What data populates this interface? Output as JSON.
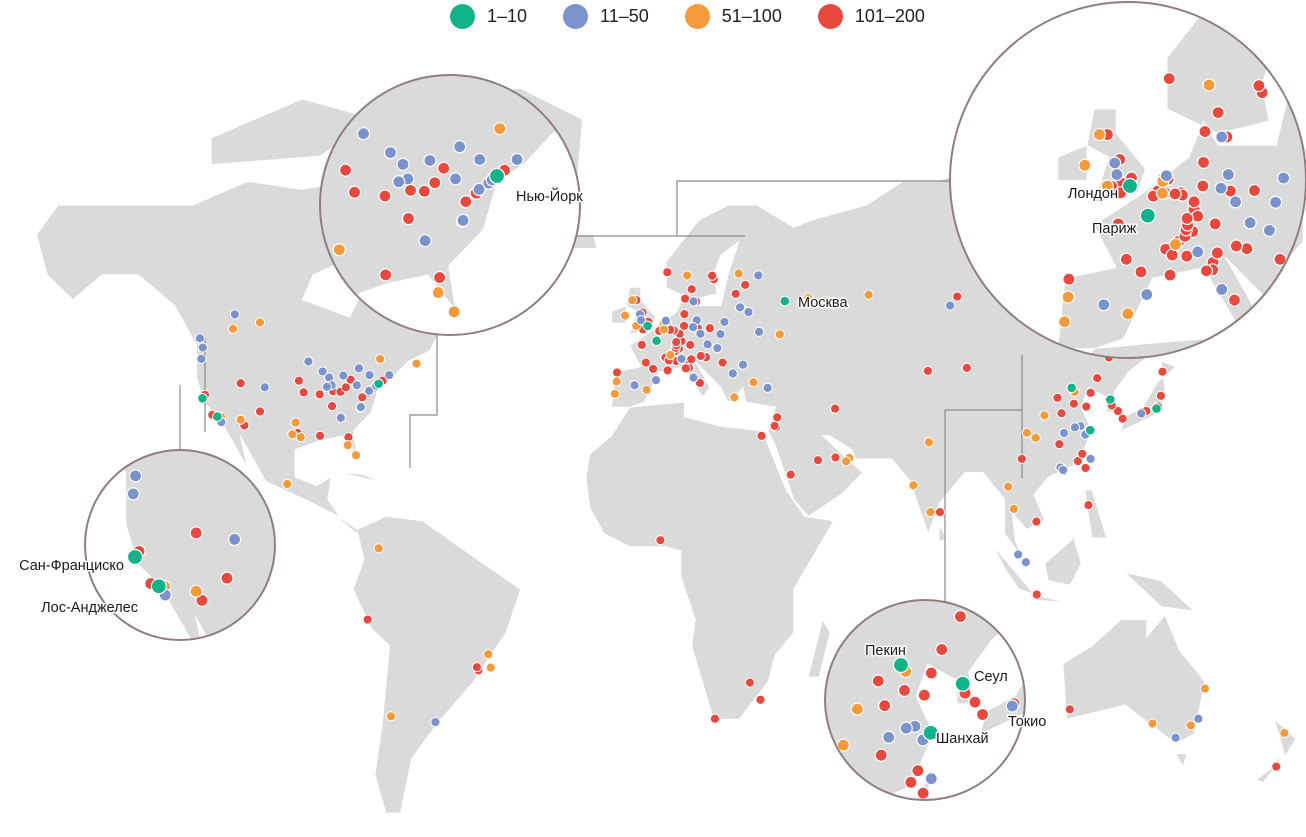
{
  "legend": [
    {
      "label": "1–10",
      "color": "#12b38a"
    },
    {
      "label": "11–50",
      "color": "#7b93cc"
    },
    {
      "label": "51–100",
      "color": "#f59a3a"
    },
    {
      "label": "101–200",
      "color": "#e8493f"
    }
  ],
  "colors": {
    "land": "#dadada",
    "ocean": "#ffffff",
    "inset_border": "#8f7f7c",
    "connector": "#8a8a8a"
  },
  "labels": {
    "moscow": "Москва",
    "new_york": "Нью-Йорк",
    "london": "Лондон",
    "paris": "Париж",
    "san_francisco": "Сан-Франциско",
    "los_angeles": "Лос-Анджелес",
    "beijing": "Пекин",
    "seoul": "Сеул",
    "shanghai": "Шанхай",
    "tokyo": "Токио"
  },
  "cities": [
    [
      -123.1,
      49.3,
      1
    ],
    [
      -122.3,
      47.6,
      1
    ],
    [
      -113.5,
      53.5,
      1
    ],
    [
      -114,
      51,
      2
    ],
    [
      -106.6,
      52.1,
      2
    ],
    [
      -122.7,
      45.5,
      1
    ],
    [
      -122.4,
      37.8,
      0
    ],
    [
      -118.3,
      34.05,
      0
    ],
    [
      -121.7,
      38.5,
      3
    ],
    [
      -117.2,
      32.9,
      1
    ],
    [
      -117.8,
      33.6,
      3
    ],
    [
      -117.3,
      34,
      2
    ],
    [
      -119.7,
      34.4,
      3
    ],
    [
      -111.9,
      40.8,
      3
    ],
    [
      -105.3,
      40,
      1
    ],
    [
      -111.9,
      33.4,
      2
    ],
    [
      -110.9,
      32.2,
      3
    ],
    [
      -106.6,
      35.1,
      3
    ],
    [
      -97.7,
      30.3,
      2
    ],
    [
      -95.4,
      29.7,
      2
    ],
    [
      -96.8,
      32.8,
      2
    ],
    [
      -96.3,
      30.6,
      3
    ],
    [
      -94.6,
      39,
      3
    ],
    [
      -95.9,
      41.3,
      3
    ],
    [
      -93.3,
      45,
      1
    ],
    [
      -89.4,
      43.1,
      1
    ],
    [
      -87.6,
      41.9,
      1
    ],
    [
      -86.5,
      39.2,
      3
    ],
    [
      -86.9,
      40.4,
      1
    ],
    [
      -83.7,
      42.3,
      1
    ],
    [
      -84.5,
      39.1,
      3
    ],
    [
      -83,
      40,
      3
    ],
    [
      -81.7,
      41.5,
      3
    ],
    [
      -80,
      40.4,
      1
    ],
    [
      -79.4,
      43.7,
      1
    ],
    [
      -73.6,
      45.5,
      2
    ],
    [
      -71.1,
      42.4,
      1
    ],
    [
      -72.9,
      41.3,
      3
    ],
    [
      -74,
      40.7,
      0
    ],
    [
      -75.2,
      39.95,
      1
    ],
    [
      -76.6,
      39.3,
      1
    ],
    [
      -77,
      38.9,
      3
    ],
    [
      -78.9,
      36,
      1
    ],
    [
      -79,
      35.9,
      3
    ],
    [
      -78.5,
      38,
      3
    ],
    [
      -84.4,
      33.8,
      1
    ],
    [
      -86.8,
      36.2,
      3
    ],
    [
      -90.2,
      38.6,
      3
    ],
    [
      -90.1,
      30,
      3
    ],
    [
      -82.3,
      29.7,
      3
    ],
    [
      -80.2,
      25.8,
      2
    ],
    [
      -82.5,
      28,
      2
    ],
    [
      -88.2,
      40.1,
      1
    ],
    [
      -76.5,
      42.4,
      1
    ],
    [
      -74.7,
      40.3,
      1
    ],
    [
      -63.6,
      44.6,
      2
    ],
    [
      -99.1,
      19.4,
      2
    ],
    [
      -74,
      4.6,
      2
    ],
    [
      -77,
      -12,
      3
    ],
    [
      -46.6,
      -23.5,
      3
    ],
    [
      -43.2,
      -22.9,
      2
    ],
    [
      -43.9,
      -19.9,
      2
    ],
    [
      -58.4,
      -34.6,
      1
    ],
    [
      -70.6,
      -33.4,
      2
    ],
    [
      -47,
      -22.8,
      3
    ],
    [
      -0.1,
      51.5,
      0
    ],
    [
      2.35,
      48.85,
      0
    ],
    [
      -3.2,
      55.9,
      3
    ],
    [
      -4.3,
      55.9,
      2
    ],
    [
      -2.2,
      53.5,
      1
    ],
    [
      -1.3,
      51.75,
      3
    ],
    [
      0.1,
      52.2,
      3
    ],
    [
      -1.9,
      52.5,
      1
    ],
    [
      -2.6,
      51.45,
      3
    ],
    [
      -1.5,
      53.8,
      3
    ],
    [
      -6.3,
      53.3,
      2
    ],
    [
      -3.2,
      51.5,
      2
    ],
    [
      -1.4,
      50.9,
      3
    ],
    [
      4.9,
      52.4,
      1
    ],
    [
      4.5,
      52.15,
      3
    ],
    [
      5.1,
      52.1,
      3
    ],
    [
      4.4,
      51.9,
      2
    ],
    [
      4.7,
      50.9,
      3
    ],
    [
      3.7,
      51.05,
      3
    ],
    [
      4.35,
      50.85,
      2
    ],
    [
      8.5,
      47.4,
      3
    ],
    [
      6.6,
      46.5,
      3
    ],
    [
      6.15,
      46.2,
      2
    ],
    [
      7.45,
      46.95,
      3
    ],
    [
      7.6,
      47.55,
      3
    ],
    [
      13.4,
      52.5,
      1
    ],
    [
      11.6,
      48.1,
      3
    ],
    [
      8.7,
      49.4,
      3
    ],
    [
      9.2,
      48.8,
      3
    ],
    [
      10,
      53.55,
      3
    ],
    [
      8.7,
      50.1,
      3
    ],
    [
      6.95,
      50.9,
      3
    ],
    [
      7.1,
      50.7,
      3
    ],
    [
      7.8,
      48,
      3
    ],
    [
      9.9,
      51.5,
      3
    ],
    [
      6.1,
      50.8,
      3
    ],
    [
      12.4,
      51.3,
      1
    ],
    [
      13.7,
      51.05,
      3
    ],
    [
      16.4,
      48.2,
      1
    ],
    [
      14.4,
      50.1,
      1
    ],
    [
      21,
      52.2,
      1
    ],
    [
      19.9,
      50.05,
      1
    ],
    [
      17,
      51.1,
      3
    ],
    [
      19.05,
      47.5,
      1
    ],
    [
      12.5,
      55.7,
      1
    ],
    [
      10.2,
      56.15,
      3
    ],
    [
      18.05,
      59.3,
      3
    ],
    [
      17.6,
      59.85,
      3
    ],
    [
      13.2,
      55.7,
      3
    ],
    [
      12,
      57.7,
      3
    ],
    [
      10.75,
      59.9,
      2
    ],
    [
      5.3,
      60.4,
      3
    ],
    [
      24.9,
      60.2,
      2
    ],
    [
      30.3,
      59.9,
      1
    ],
    [
      24.1,
      56.95,
      3
    ],
    [
      25.3,
      54.7,
      1
    ],
    [
      26.7,
      58.4,
      3
    ],
    [
      30.5,
      50.45,
      1
    ],
    [
      36.2,
      50,
      2
    ],
    [
      27.6,
      53.9,
      1
    ],
    [
      26.1,
      44.4,
      1
    ],
    [
      23.3,
      42.7,
      1
    ],
    [
      20.5,
      44.8,
      3
    ],
    [
      15.95,
      45.8,
      3
    ],
    [
      14.5,
      46.05,
      3
    ],
    [
      23.7,
      37.98,
      2
    ],
    [
      29,
      41,
      2
    ],
    [
      32.85,
      39.9,
      1
    ],
    [
      9.2,
      45.5,
      1
    ],
    [
      7.7,
      45.1,
      3
    ],
    [
      11.3,
      44.5,
      3
    ],
    [
      11.25,
      43.8,
      3
    ],
    [
      10.4,
      43.7,
      3
    ],
    [
      11.9,
      45.4,
      3
    ],
    [
      12.5,
      41.9,
      1
    ],
    [
      14.25,
      40.85,
      3
    ],
    [
      2.2,
      41.4,
      1
    ],
    [
      -3.7,
      40.4,
      1
    ],
    [
      -0.4,
      39.5,
      2
    ],
    [
      -8.6,
      41.15,
      2
    ],
    [
      -9.1,
      38.7,
      2
    ],
    [
      -8.5,
      42.9,
      3
    ],
    [
      5.4,
      43.3,
      3
    ],
    [
      1.4,
      43.6,
      3
    ],
    [
      4.8,
      45.75,
      3
    ],
    [
      5.7,
      45.2,
      3
    ],
    [
      7.75,
      48.6,
      3
    ],
    [
      -0.6,
      44.8,
      3
    ],
    [
      -1.7,
      48.1,
      3
    ],
    [
      3.1,
      50.6,
      3
    ],
    [
      -21.9,
      64.1,
      2
    ],
    [
      37.6,
      55.75,
      0
    ],
    [
      49.1,
      55.8,
      2
    ],
    [
      60.6,
      56.8,
      2
    ],
    [
      83,
      55,
      1
    ],
    [
      84.95,
      56.5,
      3
    ],
    [
      44,
      56.3,
      2
    ],
    [
      35.2,
      31.8,
      3
    ],
    [
      34.8,
      32.1,
      3
    ],
    [
      35.5,
      33.9,
      3
    ],
    [
      39.2,
      21.5,
      3
    ],
    [
      46.7,
      24.7,
      3
    ],
    [
      55.3,
      25.2,
      2
    ],
    [
      54.4,
      24.45,
      2
    ],
    [
      51.5,
      25.3,
      3
    ],
    [
      31.2,
      30,
      3
    ],
    [
      51.4,
      35.7,
      3
    ],
    [
      76.9,
      43.2,
      3
    ],
    [
      77.2,
      28.6,
      2
    ],
    [
      72.9,
      19.1,
      2
    ],
    [
      80.2,
      13,
      3
    ],
    [
      77.6,
      13,
      2
    ],
    [
      100.5,
      13.75,
      2
    ],
    [
      98.95,
      18.8,
      2
    ],
    [
      103.8,
      1.35,
      1
    ],
    [
      101.7,
      3.15,
      1
    ],
    [
      106.8,
      -6.2,
      3
    ],
    [
      121,
      14.6,
      3
    ],
    [
      106.7,
      10.8,
      3
    ],
    [
      116.4,
      39.9,
      0
    ],
    [
      121.5,
      31.2,
      0
    ],
    [
      127,
      37.55,
      0
    ],
    [
      139.7,
      35.7,
      0
    ],
    [
      117.2,
      39.1,
      2
    ],
    [
      120.4,
      36.1,
      3
    ],
    [
      117,
      36.7,
      3
    ],
    [
      118.8,
      32.05,
      1
    ],
    [
      120.15,
      30.25,
      1
    ],
    [
      117.3,
      31.8,
      1
    ],
    [
      114.3,
      30.6,
      1
    ],
    [
      113,
      28.2,
      3
    ],
    [
      108.9,
      34.3,
      2
    ],
    [
      104.1,
      30.65,
      2
    ],
    [
      106.5,
      29.55,
      2
    ],
    [
      113.3,
      23.1,
      1
    ],
    [
      114.2,
      22.3,
      1
    ],
    [
      114.05,
      22.55,
      1
    ],
    [
      118.1,
      24.5,
      3
    ],
    [
      119.3,
      26.1,
      3
    ],
    [
      121.6,
      25,
      1
    ],
    [
      120.2,
      23,
      3
    ],
    [
      123.4,
      41.8,
      3
    ],
    [
      121.6,
      38.9,
      3
    ],
    [
      126.6,
      45.75,
      3
    ],
    [
      113.6,
      34.75,
      3
    ],
    [
      112.5,
      37.9,
      3
    ],
    [
      102.7,
      25,
      3
    ],
    [
      87.6,
      43.8,
      3
    ],
    [
      129.1,
      35.2,
      3
    ],
    [
      127.4,
      36.35,
      3
    ],
    [
      135.5,
      34.7,
      1
    ],
    [
      135.8,
      35,
      3
    ],
    [
      136.9,
      35.2,
      3
    ],
    [
      140.9,
      38.3,
      3
    ],
    [
      141.35,
      43.05,
      3
    ],
    [
      130.4,
      33.6,
      3
    ],
    [
      140.1,
      36.1,
      3
    ],
    [
      3.4,
      6.5,
      3
    ],
    [
      28,
      -26.2,
      3
    ],
    [
      18.4,
      -33.9,
      3
    ],
    [
      30.9,
      -29.9,
      3
    ],
    [
      151.2,
      -33.9,
      1
    ],
    [
      144.96,
      -37.8,
      1
    ],
    [
      153,
      -27.5,
      2
    ],
    [
      149.1,
      -35.3,
      2
    ],
    [
      138.6,
      -34.9,
      2
    ],
    [
      115.9,
      -31.95,
      3
    ],
    [
      174.8,
      -36.85,
      2
    ],
    [
      172.6,
      -43.5,
      3
    ]
  ]
}
